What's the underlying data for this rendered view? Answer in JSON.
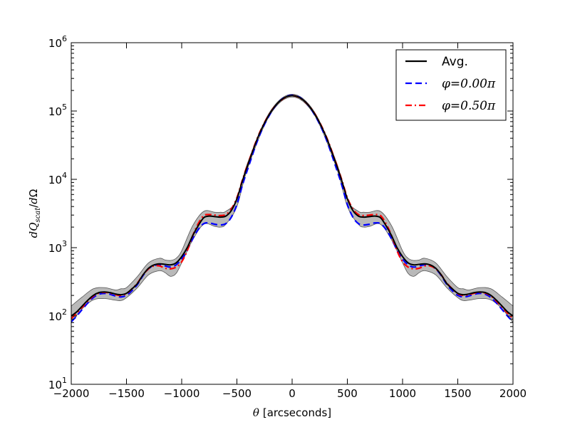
{
  "chart_data": {
    "type": "line",
    "scale": {
      "x": "linear",
      "y": "log"
    },
    "xlabel": {
      "symbol": "θ",
      "text": "[arcseconds]"
    },
    "ylabel": "dQ_scat/dΩ",
    "xlim": [
      -2000,
      2000
    ],
    "ylim": [
      10,
      1000000
    ],
    "xticks": [
      -2000,
      -1500,
      -1000,
      -500,
      0,
      500,
      1000,
      1500,
      2000
    ],
    "x_tick_labels": [
      "−2000",
      "−1500",
      "−1000",
      "−500",
      "0",
      "500",
      "1000",
      "1500",
      "2000"
    ],
    "yticks": [
      10,
      100,
      1000,
      10000,
      100000,
      1000000
    ],
    "y_tick_labels": [
      {
        "base": "10",
        "exp": "1"
      },
      {
        "base": "10",
        "exp": "2"
      },
      {
        "base": "10",
        "exp": "3"
      },
      {
        "base": "10",
        "exp": "4"
      },
      {
        "base": "10",
        "exp": "5"
      },
      {
        "base": "10",
        "exp": "6"
      }
    ],
    "grid": false,
    "legend": {
      "placement": "top-right",
      "entries": [
        {
          "label": "Avg.",
          "color": "#000000",
          "style": "solid"
        },
        {
          "label": "φ=0.00π",
          "color": "#0000ff",
          "style": "dashed"
        },
        {
          "label": "φ=0.50π",
          "color": "#ff0000",
          "style": "dashdot"
        }
      ]
    },
    "band": {
      "color": "#808080",
      "x": [
        0,
        200,
        400,
        500,
        600,
        650,
        700,
        800,
        900,
        1000,
        1050,
        1100,
        1150,
        1200,
        1300,
        1400,
        1500,
        1550,
        1600,
        1700,
        1800,
        1900,
        2000
      ],
      "upper": [
        176000,
        98000,
        18000,
        5000,
        3400,
        3300,
        3300,
        3400,
        2100,
        900,
        700,
        650,
        660,
        700,
        600,
        380,
        260,
        250,
        240,
        260,
        250,
        190,
        140
      ],
      "lower": [
        160000,
        88000,
        15000,
        4000,
        2200,
        2000,
        2050,
        2200,
        1300,
        600,
        420,
        380,
        430,
        460,
        400,
        260,
        185,
        168,
        170,
        180,
        172,
        128,
        80
      ]
    },
    "series": [
      {
        "name": "Avg.",
        "color": "#000000",
        "style": "solid",
        "x": [
          0,
          100,
          200,
          300,
          400,
          450,
          500,
          550,
          600,
          650,
          700,
          750,
          800,
          850,
          900,
          950,
          1000,
          1050,
          1100,
          1150,
          1200,
          1250,
          1300,
          1350,
          1400,
          1450,
          1500,
          1550,
          1600,
          1650,
          1700,
          1750,
          1800,
          1850,
          1900,
          1950,
          2000
        ],
        "y": [
          168000,
          145000,
          93000,
          45000,
          16500,
          9500,
          5200,
          3500,
          2900,
          2800,
          2850,
          2900,
          2750,
          2100,
          1500,
          1000,
          740,
          600,
          560,
          570,
          580,
          560,
          500,
          400,
          300,
          250,
          215,
          205,
          210,
          220,
          225,
          220,
          200,
          170,
          140,
          115,
          100
        ]
      },
      {
        "name": "φ=0.00π",
        "color": "#0000ff",
        "style": "dashed",
        "x": [
          0,
          100,
          200,
          300,
          400,
          450,
          500,
          550,
          600,
          650,
          700,
          750,
          800,
          850,
          900,
          950,
          1000,
          1050,
          1100,
          1150,
          1200,
          1250,
          1300,
          1350,
          1400,
          1450,
          1500,
          1550,
          1600,
          1650,
          1700,
          1750,
          1800,
          1850,
          1900,
          1950,
          2000
        ],
        "y": [
          170000,
          146000,
          90000,
          42000,
          14500,
          8200,
          4300,
          2800,
          2250,
          2150,
          2200,
          2300,
          2250,
          1850,
          1350,
          920,
          680,
          560,
          520,
          540,
          560,
          550,
          490,
          390,
          290,
          235,
          200,
          190,
          196,
          208,
          214,
          208,
          186,
          155,
          125,
          100,
          82
        ]
      },
      {
        "name": "φ=0.50π",
        "color": "#ff0000",
        "style": "dashdot",
        "x": [
          0,
          100,
          200,
          300,
          400,
          450,
          500,
          550,
          600,
          650,
          700,
          750,
          800,
          850,
          900,
          950,
          1000,
          1050,
          1100,
          1150,
          1200,
          1250,
          1300,
          1350,
          1400,
          1450,
          1500,
          1550,
          1600,
          1650,
          1700,
          1750,
          1800,
          1850,
          1900,
          1950,
          2000
        ],
        "y": [
          168000,
          144000,
          94000,
          46000,
          17000,
          9800,
          5400,
          3700,
          3050,
          2950,
          3000,
          3050,
          2950,
          2250,
          1500,
          900,
          620,
          520,
          490,
          500,
          540,
          540,
          490,
          400,
          305,
          250,
          212,
          200,
          205,
          216,
          222,
          216,
          196,
          165,
          135,
          110,
          92
        ]
      }
    ]
  }
}
